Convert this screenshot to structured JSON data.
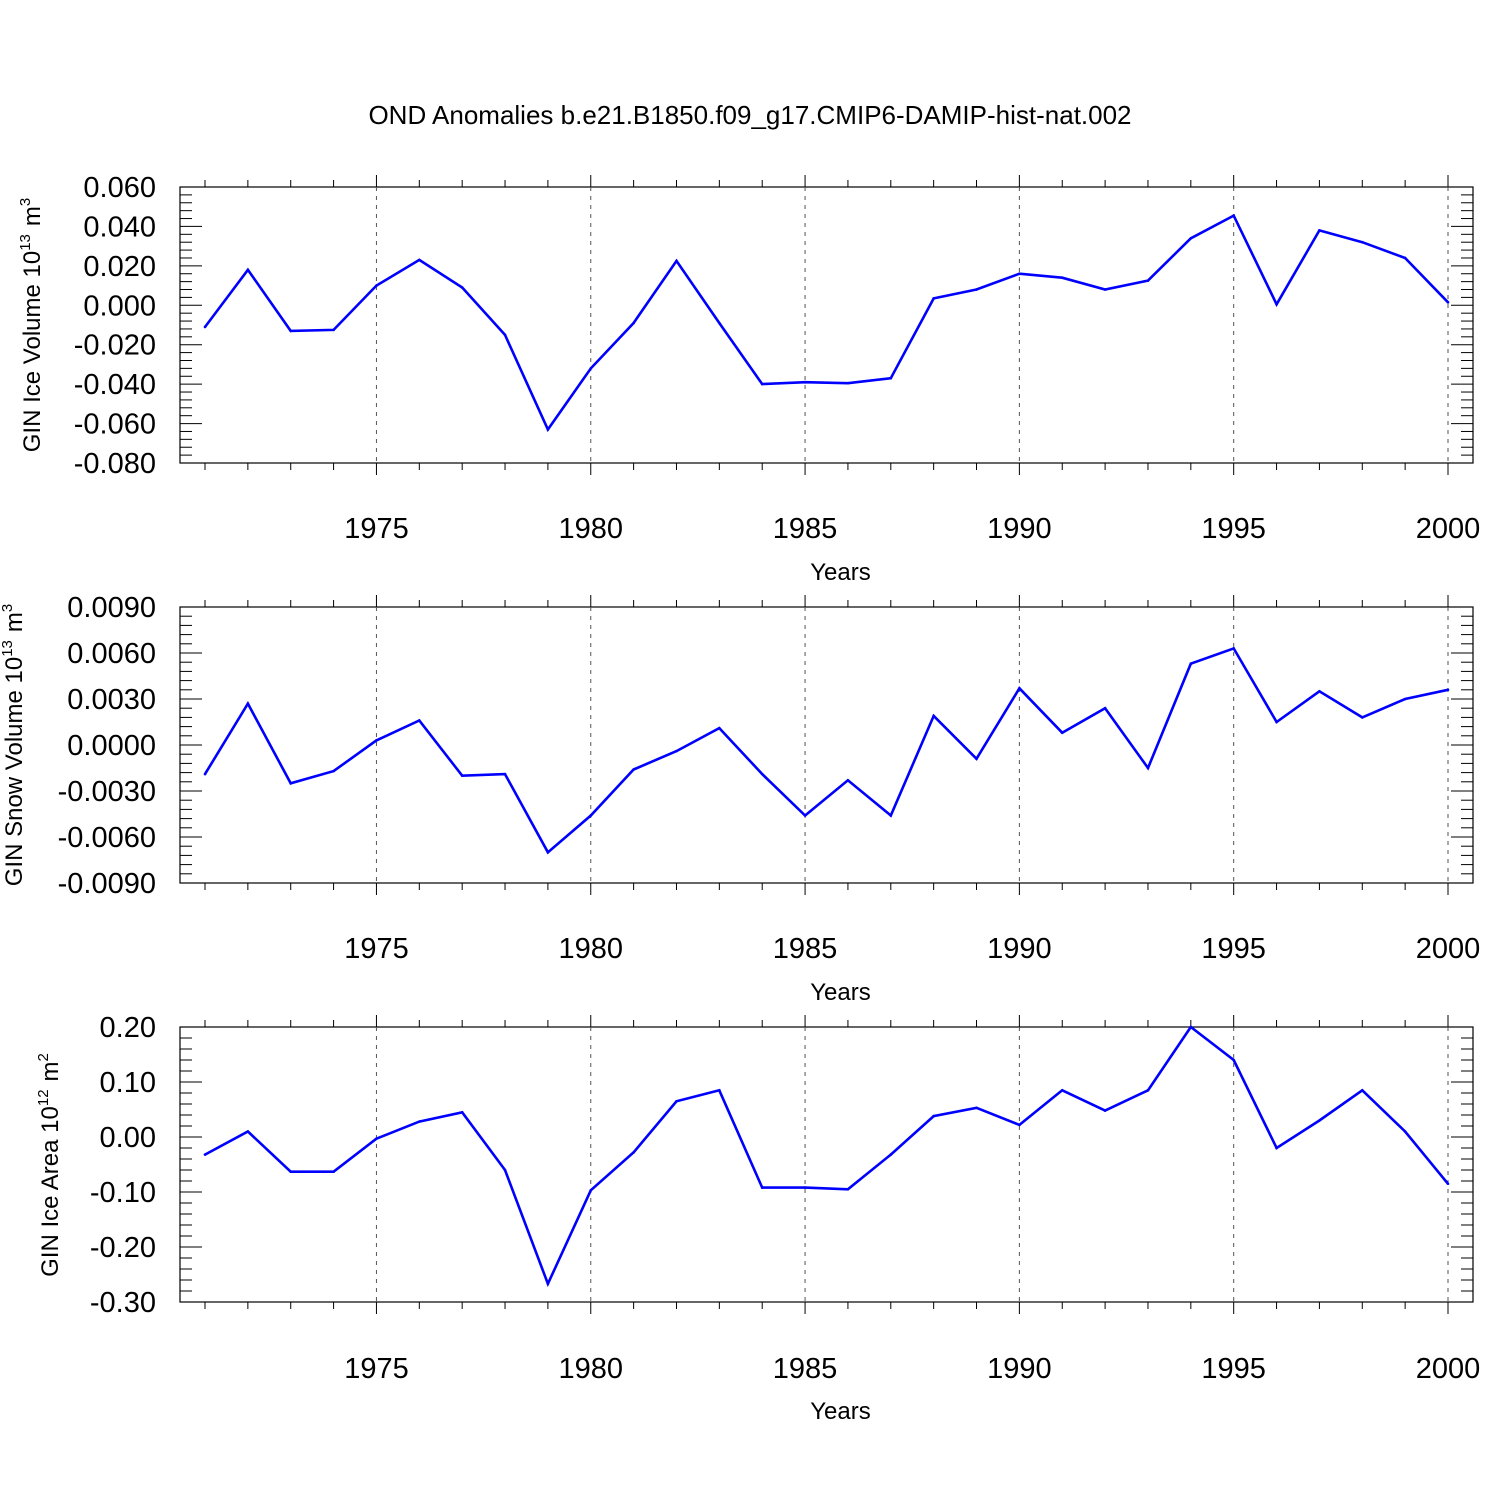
{
  "title": "OND Anomalies b.e21.B1850.f09_g17.CMIP6-DAMIP-hist-nat.002",
  "colors": {
    "line": "#0000ff",
    "axis": "#000000",
    "grid": "#000000"
  },
  "chart_data": [
    {
      "type": "line",
      "xlabel": "Years",
      "ylabel": "GIN Ice Volume 10",
      "ylabel_exp": "13",
      "ylabel_unit": "m",
      "ylabel_unit_exp": "3",
      "xlim": [
        1971,
        2000
      ],
      "ylim": [
        -0.08,
        0.06
      ],
      "yticks": [
        0.06,
        0.04,
        0.02,
        0.0,
        -0.02,
        -0.04,
        -0.06,
        -0.08
      ],
      "ytick_labels": [
        "0.060",
        "0.040",
        "0.020",
        "0.000",
        "-0.020",
        "-0.040",
        "-0.060",
        "-0.080"
      ],
      "xticks": [
        1975,
        1980,
        1985,
        1990,
        1995,
        2000
      ],
      "xtick_labels": [
        "1975",
        "1980",
        "1985",
        "1990",
        "1995",
        "2000"
      ],
      "grid": "vertical dashed at major x ticks",
      "x": [
        1971,
        1972,
        1973,
        1974,
        1975,
        1976,
        1977,
        1978,
        1979,
        1980,
        1981,
        1982,
        1983,
        1984,
        1985,
        1986,
        1987,
        1988,
        1989,
        1990,
        1991,
        1992,
        1993,
        1994,
        1995,
        1996,
        1997,
        1998,
        1999,
        2000
      ],
      "values": [
        -0.011,
        0.018,
        -0.013,
        -0.0125,
        0.01,
        0.023,
        0.009,
        -0.015,
        -0.063,
        -0.032,
        -0.009,
        0.0225,
        -0.009,
        -0.04,
        -0.039,
        -0.0395,
        -0.037,
        0.0035,
        0.008,
        0.016,
        0.014,
        0.008,
        0.0125,
        0.034,
        0.0455,
        0.0005,
        0.038,
        0.032,
        0.024,
        0.0015
      ]
    },
    {
      "type": "line",
      "xlabel": "Years",
      "ylabel": "GIN Snow Volume 10",
      "ylabel_exp": "13",
      "ylabel_unit": "m",
      "ylabel_unit_exp": "3",
      "xlim": [
        1971,
        2000
      ],
      "ylim": [
        -0.009,
        0.009
      ],
      "yticks": [
        0.009,
        0.006,
        0.003,
        0.0,
        -0.003,
        -0.006,
        -0.009
      ],
      "ytick_labels": [
        "0.0090",
        "0.0060",
        "0.0030",
        "0.0000",
        "-0.0030",
        "-0.0060",
        "-0.0090"
      ],
      "xticks": [
        1975,
        1980,
        1985,
        1990,
        1995,
        2000
      ],
      "xtick_labels": [
        "1975",
        "1980",
        "1985",
        "1990",
        "1995",
        "2000"
      ],
      "grid": "vertical dashed at major x ticks",
      "x": [
        1971,
        1972,
        1973,
        1974,
        1975,
        1976,
        1977,
        1978,
        1979,
        1980,
        1981,
        1982,
        1983,
        1984,
        1985,
        1986,
        1987,
        1988,
        1989,
        1990,
        1991,
        1992,
        1993,
        1994,
        1995,
        1996,
        1997,
        1998,
        1999,
        2000
      ],
      "values": [
        -0.0019,
        0.0027,
        -0.0025,
        -0.0017,
        0.0003,
        0.0016,
        -0.002,
        -0.0019,
        -0.007,
        -0.0046,
        -0.0016,
        -0.0004,
        0.0011,
        -0.0019,
        -0.0046,
        -0.0023,
        -0.0046,
        0.0019,
        -0.0009,
        0.0037,
        0.0008,
        0.0024,
        -0.0015,
        0.0053,
        0.0063,
        0.0015,
        0.0035,
        0.0018,
        0.003,
        0.0036
      ]
    },
    {
      "type": "line",
      "xlabel": "Years",
      "ylabel": "GIN Ice Area 10",
      "ylabel_exp": "12",
      "ylabel_unit": "m",
      "ylabel_unit_exp": "2",
      "xlim": [
        1971,
        2000
      ],
      "ylim": [
        -0.3,
        0.2
      ],
      "yticks": [
        0.2,
        0.1,
        0.0,
        -0.1,
        -0.2,
        -0.3
      ],
      "ytick_labels": [
        "0.20",
        "0.10",
        "0.00",
        "-0.10",
        "-0.20",
        "-0.30"
      ],
      "xticks": [
        1975,
        1980,
        1985,
        1990,
        1995,
        2000
      ],
      "xtick_labels": [
        "1975",
        "1980",
        "1985",
        "1990",
        "1995",
        "2000"
      ],
      "grid": "vertical dashed at major x ticks",
      "x": [
        1971,
        1972,
        1973,
        1974,
        1975,
        1976,
        1977,
        1978,
        1979,
        1980,
        1981,
        1982,
        1983,
        1984,
        1985,
        1986,
        1987,
        1988,
        1989,
        1990,
        1991,
        1992,
        1993,
        1994,
        1995,
        1996,
        1997,
        1998,
        1999,
        2000
      ],
      "values": [
        -0.032,
        0.01,
        -0.063,
        -0.063,
        -0.003,
        0.028,
        0.045,
        -0.06,
        -0.267,
        -0.097,
        -0.028,
        0.065,
        0.085,
        -0.092,
        -0.092,
        -0.095,
        -0.032,
        0.038,
        0.053,
        0.022,
        0.085,
        0.048,
        0.085,
        0.2,
        0.14,
        -0.02,
        0.03,
        0.085,
        0.01,
        -0.085
      ]
    }
  ]
}
